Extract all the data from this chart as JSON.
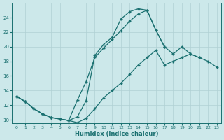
{
  "xlabel": "Humidex (Indice chaleur)",
  "bg_color": "#cce8ea",
  "grid_color": "#b0d0d4",
  "line_color": "#1a7070",
  "xlim": [
    -0.5,
    23.5
  ],
  "ylim": [
    9.5,
    26
  ],
  "yticks": [
    10,
    12,
    14,
    16,
    18,
    20,
    22,
    24
  ],
  "xticks": [
    0,
    1,
    2,
    3,
    4,
    5,
    6,
    7,
    8,
    9,
    10,
    11,
    12,
    13,
    14,
    15,
    16,
    17,
    18,
    19,
    20,
    21,
    22,
    23
  ],
  "line_top_x": [
    0,
    1,
    2,
    3,
    4,
    5,
    6,
    7,
    8,
    9,
    10,
    11,
    12,
    13,
    14,
    15,
    16,
    17
  ],
  "line_top_y": [
    13.2,
    12.5,
    11.5,
    10.8,
    10.3,
    10.1,
    9.9,
    10.4,
    12.6,
    18.8,
    20.3,
    21.3,
    23.8,
    24.8,
    25.2,
    25.0,
    22.3,
    20.0
  ],
  "line_mid_x": [
    0,
    1,
    2,
    3,
    4,
    5,
    6,
    7,
    8,
    9,
    10,
    11,
    12,
    13,
    14,
    15,
    16,
    17,
    18,
    19,
    20,
    21
  ],
  "line_mid_y": [
    13.2,
    12.5,
    11.5,
    10.8,
    10.3,
    10.1,
    9.9,
    12.7,
    15.2,
    18.5,
    19.8,
    21.0,
    22.2,
    23.5,
    24.5,
    25.0,
    22.3,
    20.0,
    19.0,
    20.0,
    19.0,
    18.5
  ],
  "line_bot_x": [
    0,
    1,
    2,
    3,
    4,
    5,
    6,
    7,
    8,
    9,
    10,
    11,
    12,
    13,
    14,
    15,
    16,
    17,
    18,
    19,
    20,
    21,
    22,
    23
  ],
  "line_bot_y": [
    13.2,
    12.5,
    11.5,
    10.8,
    10.3,
    10.1,
    9.9,
    9.6,
    10.2,
    11.5,
    13.0,
    14.0,
    15.0,
    16.2,
    17.5,
    18.5,
    19.5,
    17.5,
    18.0,
    18.5,
    19.0,
    18.5,
    18.0,
    17.2
  ]
}
